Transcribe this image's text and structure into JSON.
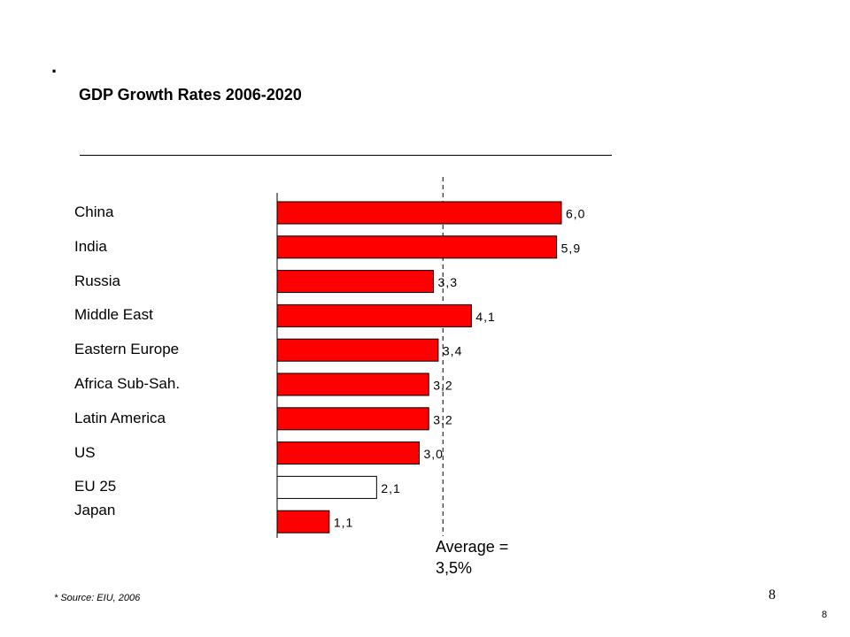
{
  "bullet": ".",
  "title": "GDP Growth Rates 2006-2020",
  "average_label": "Average =\n3,5%",
  "source": "* Source: EIU, 2006",
  "page_number_large": "8",
  "page_number_small": "8",
  "chart_data": {
    "type": "bar",
    "orientation": "horizontal",
    "title": "GDP Growth Rates 2006-2020",
    "categories": [
      "China",
      "India",
      "Russia",
      "Middle East",
      "Eastern Europe",
      "Africa Sub-Sah.",
      "Latin America",
      "US",
      "EU 25",
      "Japan"
    ],
    "values": [
      6.0,
      5.9,
      3.3,
      4.1,
      3.4,
      3.2,
      3.2,
      3.0,
      2.1,
      1.1
    ],
    "value_labels": [
      "6,0",
      "5,9",
      "3,3",
      "4,1",
      "3,4",
      "3,2",
      "3,2",
      "3,0",
      "2,1",
      "1,1"
    ],
    "bar_colors": [
      "#ff0000",
      "#ff0000",
      "#ff0000",
      "#ff0000",
      "#ff0000",
      "#ff0000",
      "#ff0000",
      "#ff0000",
      "#ffffff",
      "#ff0000"
    ],
    "average": 3.5,
    "grid": false,
    "legend": "none"
  }
}
